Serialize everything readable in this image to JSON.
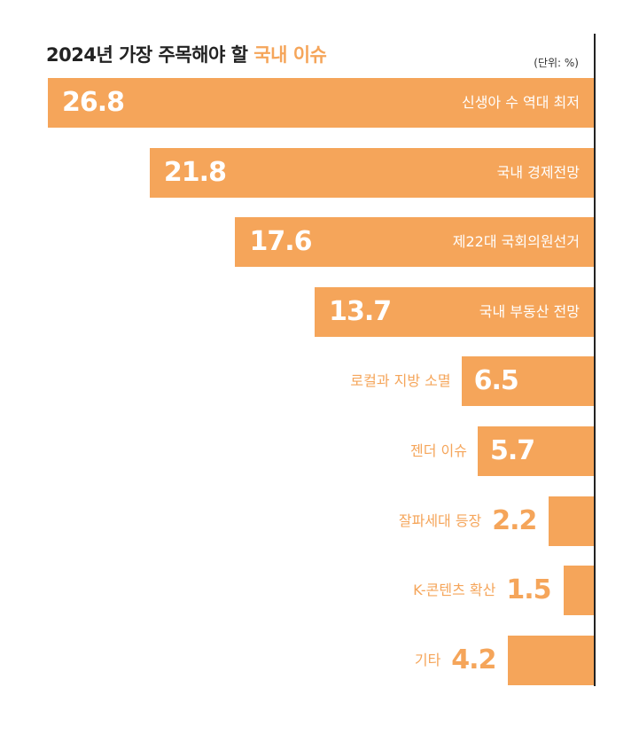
{
  "title": {
    "main": "2024년 가장 주목해야 할 ",
    "accent": "국내 이슈"
  },
  "unit": "(단위: %)",
  "colors": {
    "bar": "#F5A55A",
    "title": "#222222"
  },
  "chart_data": {
    "type": "bar",
    "orientation": "horizontal",
    "categories": [
      "신생아 수 역대 최저",
      "국내 경제전망",
      "제22대 국회의원선거",
      "국내 부동산 전망",
      "로컬과 지방 소멸",
      "젠더 이슈",
      "잘파세대 등장",
      "K-콘텐츠 확산",
      "기타"
    ],
    "values": [
      26.8,
      21.8,
      17.6,
      13.7,
      6.5,
      5.7,
      2.2,
      1.5,
      4.2
    ],
    "value_labels": [
      "26.8",
      "21.8",
      "17.6",
      "13.7",
      "6.5",
      "5.7",
      "2.2",
      "1.5",
      "4.2"
    ],
    "xlim": [
      0,
      26.8
    ],
    "grid": false,
    "legend": "none"
  }
}
